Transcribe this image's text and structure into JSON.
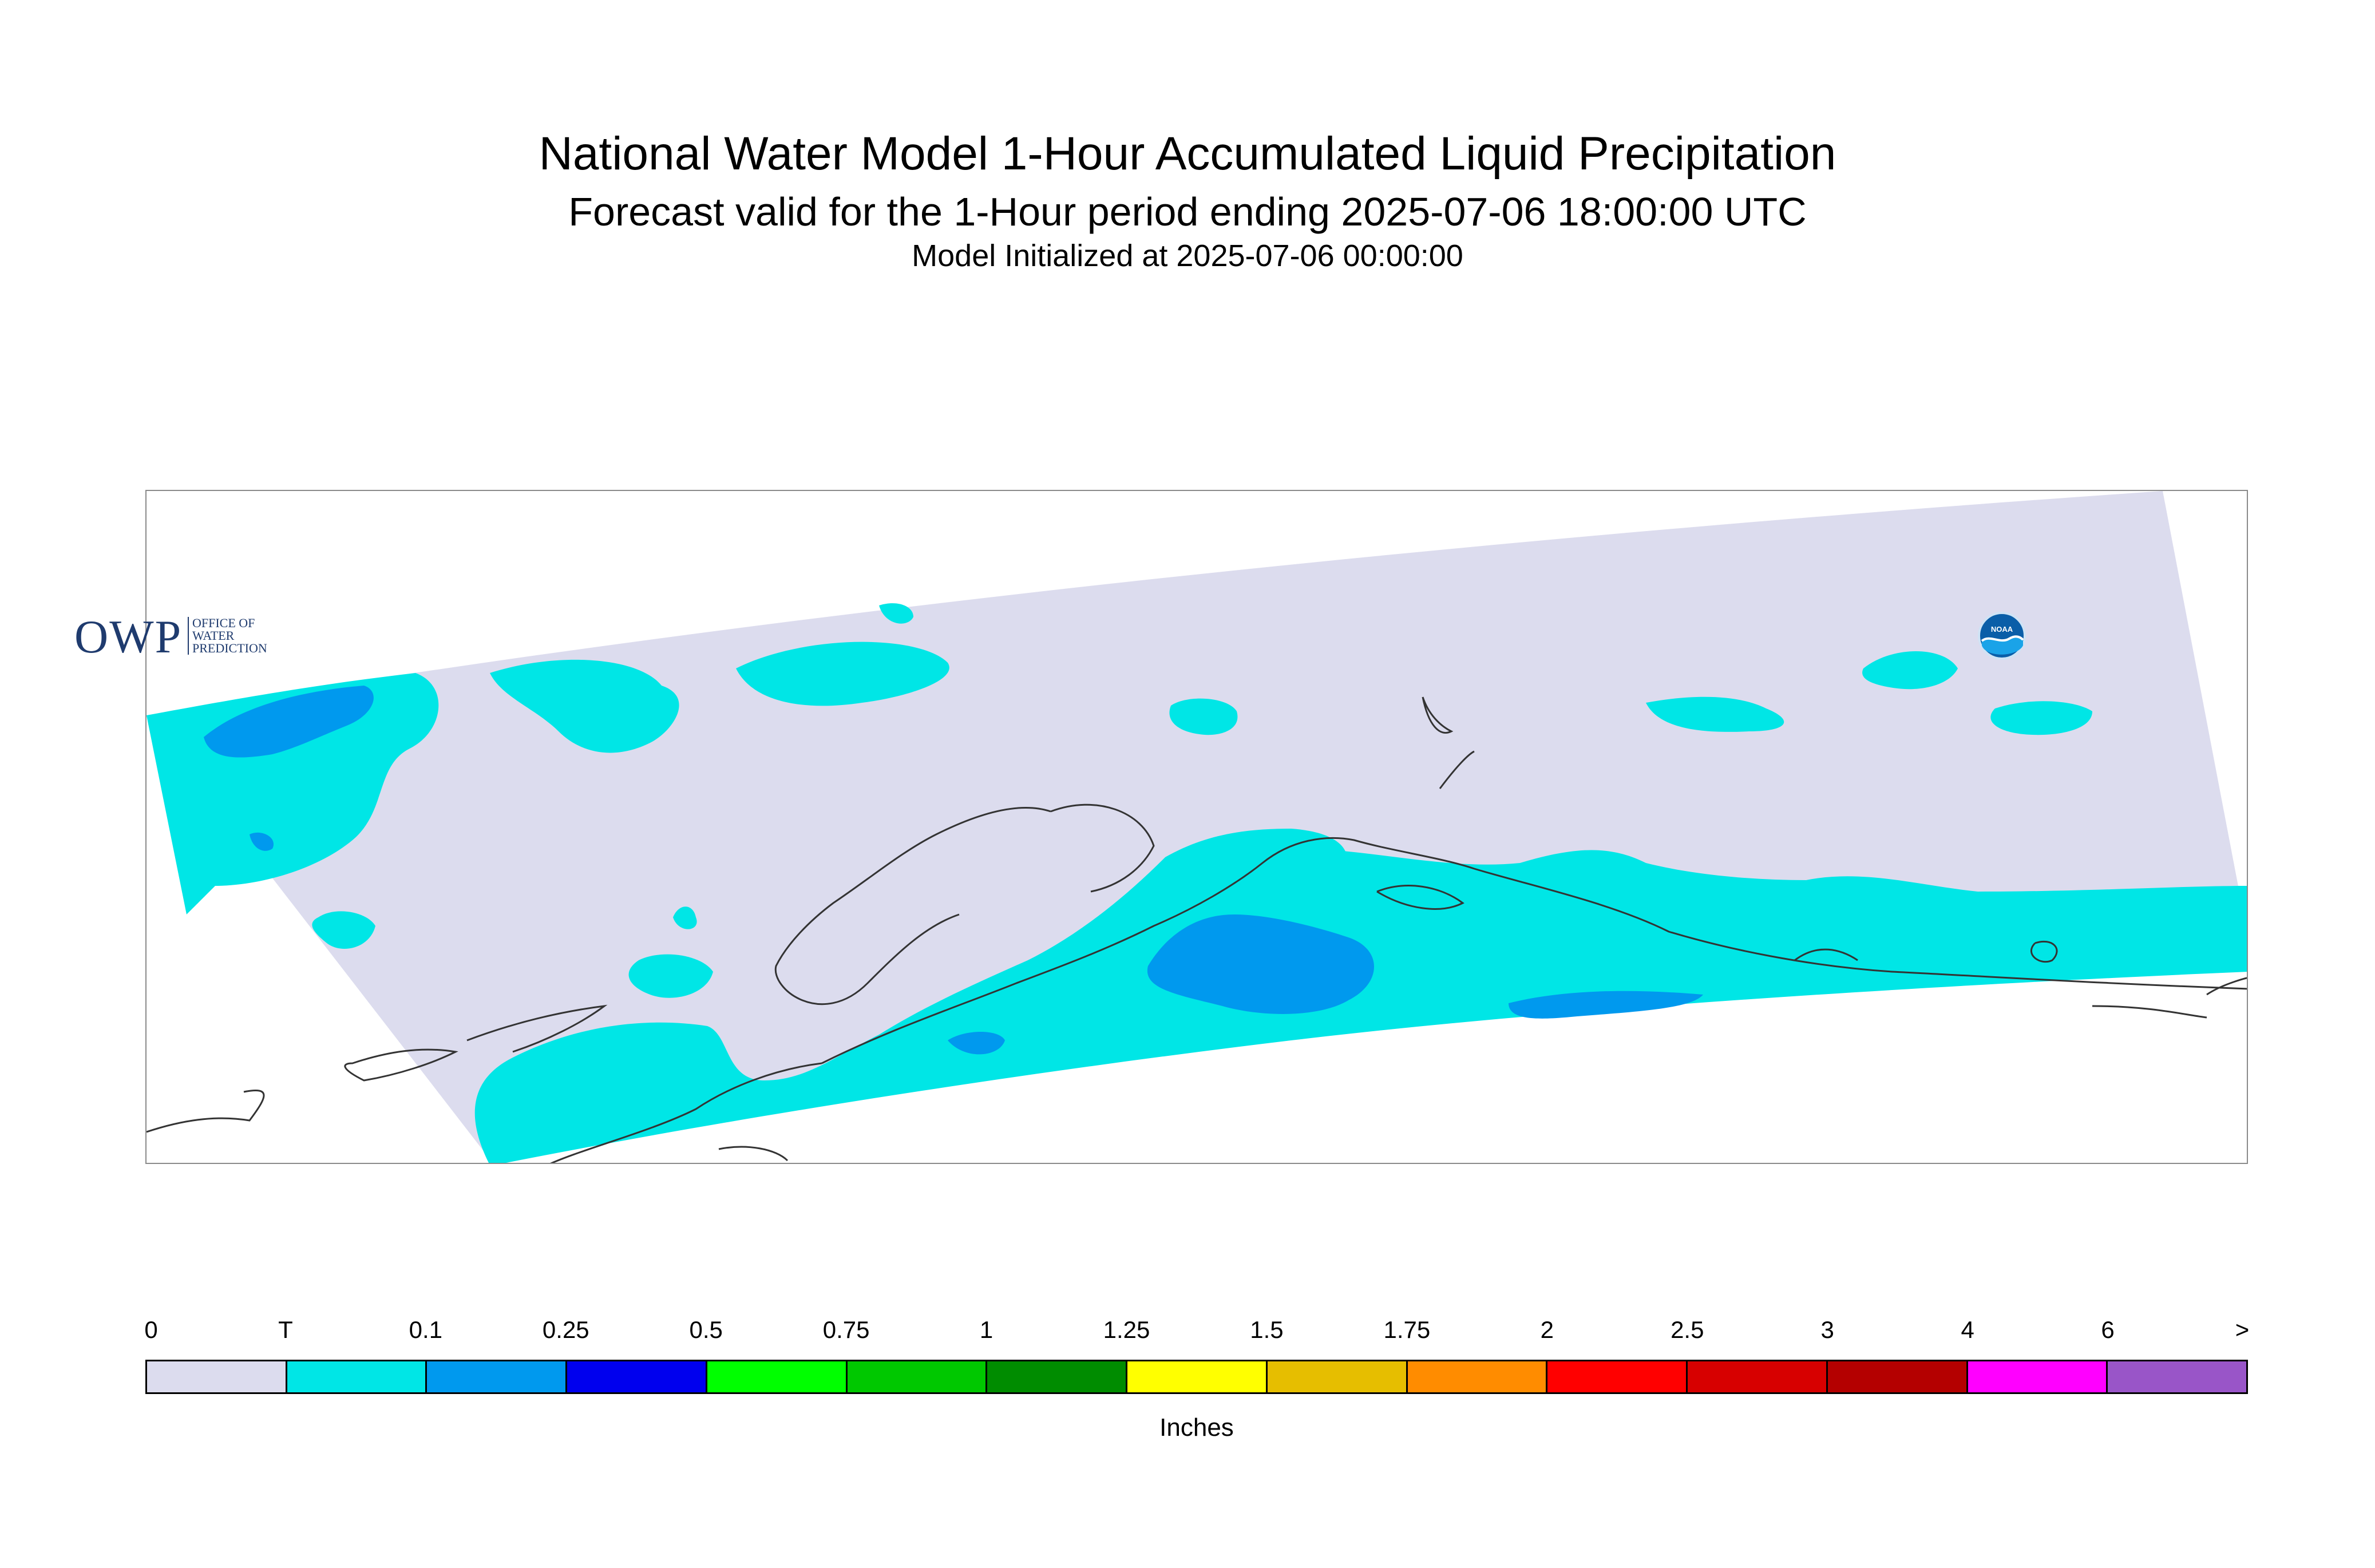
{
  "header": {
    "title": "National Water Model 1-Hour Accumulated Liquid Precipitation",
    "subtitle": "Forecast valid for the 1-Hour period ending 2025-07-06 18:00:00 UTC",
    "init_line": "Model Initialized at 2025-07-06 00:00:00"
  },
  "map": {
    "region_fill": "#dcdcee",
    "coastline_color": "#333333",
    "precip_zones": [
      {
        "category": "T",
        "color": "#00e6e6"
      },
      {
        "category": "0.1",
        "color": "#0099ee"
      }
    ]
  },
  "logos": {
    "owp_mark": "OWP",
    "owp_text": [
      "OFFICE OF",
      "WATER",
      "PREDICTION"
    ],
    "noaa_text": "NOAA"
  },
  "legend": {
    "tick_labels": [
      "0",
      "T",
      "0.1",
      "0.25",
      "0.5",
      "0.75",
      "1",
      "1.25",
      "1.5",
      "1.75",
      "2",
      "2.5",
      "3",
      "4",
      "6",
      ">"
    ],
    "colors": [
      "#dcdcee",
      "#00e6e6",
      "#0099ee",
      "#0000ee",
      "#00ff00",
      "#00c800",
      "#008c00",
      "#ffff00",
      "#e6be00",
      "#ff8c00",
      "#ff0000",
      "#d70000",
      "#b40000",
      "#ff00ff",
      "#9955c8"
    ],
    "units": "Inches"
  }
}
